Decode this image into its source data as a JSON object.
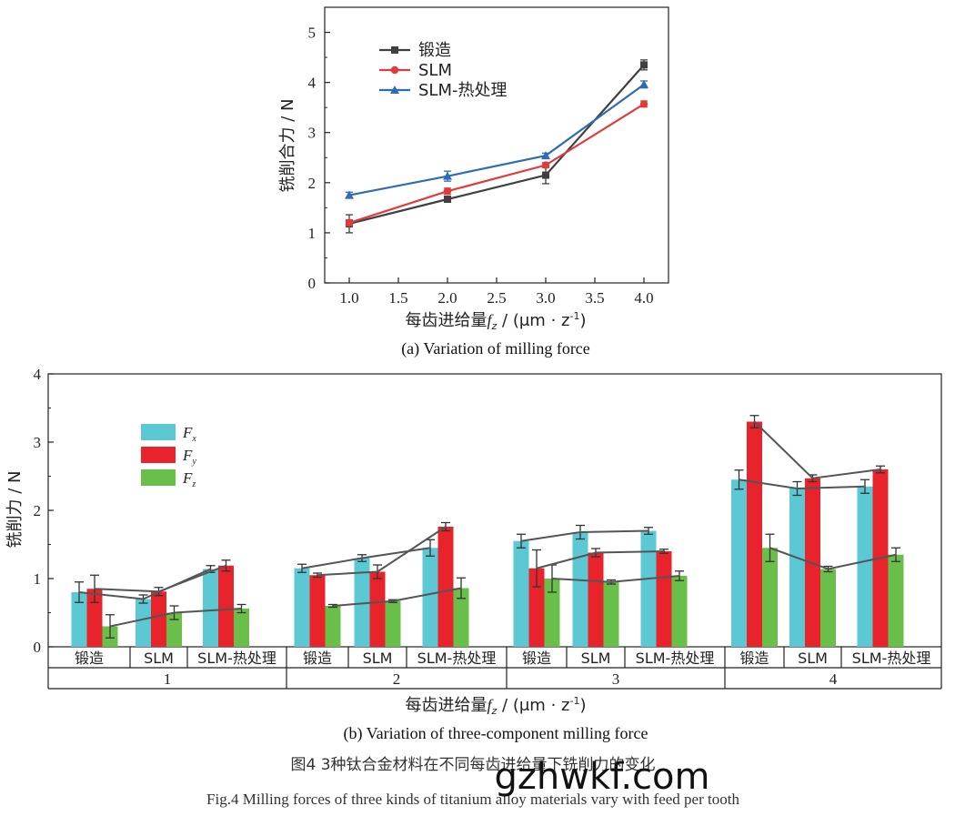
{
  "chart_data": [
    {
      "type": "line",
      "title": "",
      "caption": "(a) Variation of milling force",
      "xlabel_main": "每齿进给量",
      "xlabel_var": "f",
      "xlabel_sub": "z",
      "xlabel_unit": " / (μm · z",
      "xlabel_exp": "-1",
      "xlabel_close": ")",
      "ylabel": "铣削合力 / N",
      "xlim": [
        0.75,
        4.25
      ],
      "ylim": [
        0,
        5.5
      ],
      "xticks": [
        "1.0",
        "1.5",
        "2.0",
        "2.5",
        "3.0",
        "3.5",
        "4.0"
      ],
      "xtick_values": [
        1.0,
        1.5,
        2.0,
        2.5,
        3.0,
        3.5,
        4.0
      ],
      "yticks": [
        "0",
        "1",
        "2",
        "3",
        "4",
        "5"
      ],
      "ytick_values": [
        0,
        1,
        2,
        3,
        4,
        5
      ],
      "x": [
        1.0,
        2.0,
        3.0,
        4.0
      ],
      "legend_position": "top-left",
      "series": [
        {
          "name": "锻造",
          "color": "#404040",
          "marker": "square",
          "values": [
            1.18,
            1.67,
            2.15,
            4.35
          ],
          "errors": [
            0.18,
            0.05,
            0.17,
            0.1
          ]
        },
        {
          "name": "SLM",
          "color": "#e23b3b",
          "marker": "circle",
          "values": [
            1.2,
            1.83,
            2.35,
            3.57
          ],
          "errors": [
            0.06,
            0.06,
            0.05,
            0.06
          ]
        },
        {
          "name": "SLM-热处理",
          "color": "#2f6db3",
          "marker": "triangle",
          "values": [
            1.75,
            2.13,
            2.54,
            3.96
          ],
          "errors": [
            0.06,
            0.1,
            0.05,
            0.07
          ]
        }
      ]
    },
    {
      "type": "bar",
      "caption": "(b) Variation of three-component milling force",
      "xlabel_main": "每齿进给量",
      "xlabel_var": "f",
      "xlabel_sub": "z",
      "xlabel_unit": " / (μm · z",
      "xlabel_exp": "-1",
      "xlabel_close": ")",
      "ylabel": "铣削力 / N",
      "ylim": [
        0,
        4
      ],
      "yticks": [
        "0",
        "1",
        "2",
        "3",
        "4"
      ],
      "ytick_values": [
        0,
        1,
        2,
        3,
        4
      ],
      "groups": [
        "1",
        "2",
        "3",
        "4"
      ],
      "materials": [
        "锻造",
        "SLM",
        "SLM-热处理"
      ],
      "legend_position": "top-left",
      "series": [
        {
          "name": "F",
          "sub": "x",
          "color": "#5bc8d4",
          "values": [
            [
              0.8,
              0.7,
              1.14
            ],
            [
              1.15,
              1.3,
              1.45
            ],
            [
              1.55,
              1.68,
              1.7
            ],
            [
              2.45,
              2.32,
              2.35
            ]
          ],
          "errors": [
            [
              0.15,
              0.06,
              0.05
            ],
            [
              0.06,
              0.05,
              0.12
            ],
            [
              0.1,
              0.1,
              0.05
            ],
            [
              0.14,
              0.1,
              0.1
            ]
          ]
        },
        {
          "name": "F",
          "sub": "y",
          "color": "#e8232b",
          "values": [
            [
              0.85,
              0.81,
              1.19
            ],
            [
              1.05,
              1.1,
              1.76
            ],
            [
              1.15,
              1.38,
              1.4
            ],
            [
              3.3,
              2.47,
              2.6
            ]
          ],
          "errors": [
            [
              0.2,
              0.06,
              0.08
            ],
            [
              0.03,
              0.1,
              0.06
            ],
            [
              0.27,
              0.06,
              0.03
            ],
            [
              0.09,
              0.05,
              0.05
            ]
          ]
        },
        {
          "name": "F",
          "sub": "z",
          "color": "#6abf4b",
          "values": [
            [
              0.3,
              0.5,
              0.56
            ],
            [
              0.6,
              0.67,
              0.86
            ],
            [
              1.0,
              0.95,
              1.04
            ],
            [
              1.45,
              1.14,
              1.35
            ]
          ],
          "errors": [
            [
              0.17,
              0.1,
              0.06
            ],
            [
              0.02,
              0.02,
              0.15
            ],
            [
              0.2,
              0.03,
              0.07
            ],
            [
              0.2,
              0.04,
              0.1
            ]
          ]
        }
      ]
    }
  ],
  "figure_caption_cn": "图4 3种钛合金材料在不同每齿进给量下铣削力的变化",
  "figure_caption_en": "Fig.4 Milling forces of three kinds of titanium alloy materials vary with feed per tooth",
  "watermark": "gzhwkf.com"
}
